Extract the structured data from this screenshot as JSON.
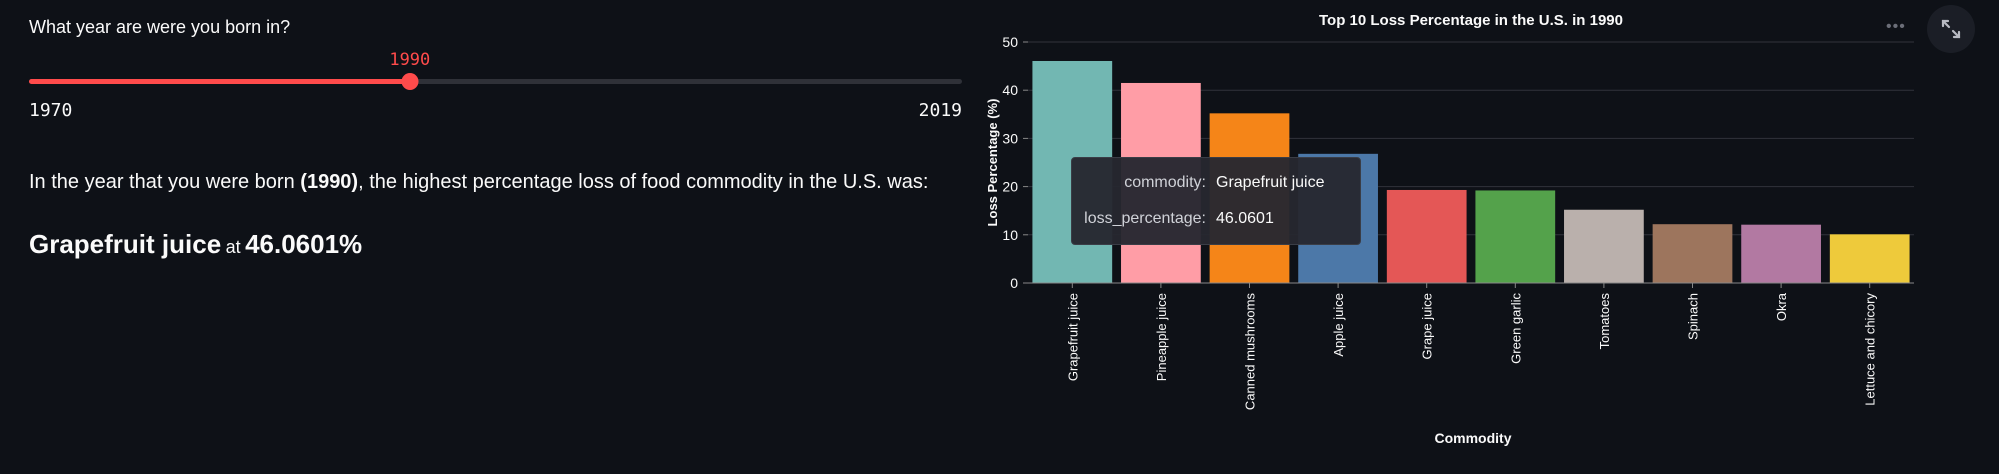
{
  "slider": {
    "label": "What year are were you born in?",
    "value": "1990",
    "min_label": "1970",
    "max_label": "2019",
    "min": 1970,
    "max": 2019,
    "current": 1990,
    "accent_color": "#ff4b4b"
  },
  "result": {
    "sentence_prefix": "In the year that you were born ",
    "sentence_year": "(1990)",
    "sentence_suffix": ", the highest percentage loss of food commodity in the U.S. was:",
    "commodity": "Grapefruit juice",
    "at_word": "at",
    "percentage": "46.0601%"
  },
  "tooltip": {
    "commodity_key": "commodity:",
    "commodity_value": "Grapefruit juice",
    "loss_key": "loss_percentage:",
    "loss_value": "46.0601"
  },
  "toolbar": {
    "more_icon": "more-dots-icon",
    "dots": "•••",
    "fullscreen_icon": "expand-icon"
  },
  "chart_data": {
    "type": "bar",
    "title": "Top 10 Loss Percentage in the U.S. in 1990",
    "xlabel": "Commodity",
    "ylabel": "Loss Percentage (%)",
    "ylim": [
      0,
      50
    ],
    "yticks": [
      0,
      10,
      20,
      30,
      40,
      50
    ],
    "grid": true,
    "categories": [
      "Grapefruit juice",
      "Pineapple juice",
      "Canned mushrooms",
      "Apple juice",
      "Grape juice",
      "Green garlic",
      "Tomatoes",
      "Spinach",
      "Okra",
      "Lettuce and chicory"
    ],
    "values": [
      46.0601,
      41.5,
      35.2,
      26.8,
      19.3,
      19.2,
      15.2,
      12.2,
      12.1,
      10.1
    ],
    "colors": [
      "#72b7b2",
      "#ff9da6",
      "#f58518",
      "#4c78a8",
      "#e45756",
      "#54a24b",
      "#bab0ac",
      "#9d755d",
      "#b279a2",
      "#eeca3b"
    ]
  }
}
